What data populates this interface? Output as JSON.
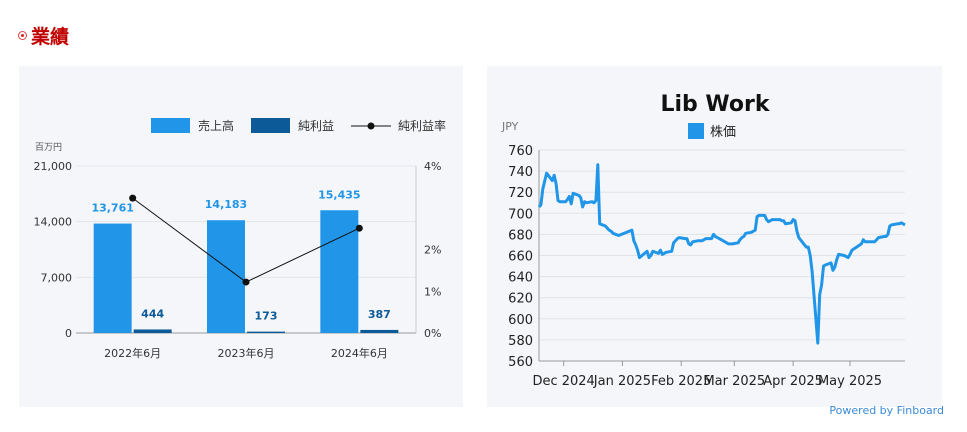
{
  "section": {
    "title": "業績"
  },
  "colors": {
    "sales": "#2196e8",
    "profit": "#0d5a99",
    "rate": "#111111",
    "price_line": "#2196e8",
    "title_red": "#c00000",
    "panel_bg": "#f4f6f9",
    "link": "#3a8ad6"
  },
  "chart_data": [
    {
      "type": "bar",
      "unit_label": "百万円",
      "categories": [
        "2022年6月",
        "2023年6月",
        "2024年6月"
      ],
      "series": [
        {
          "name": "売上高",
          "kind": "bar",
          "values": [
            13761,
            14183,
            15435
          ],
          "labels": [
            "13,761",
            "14,183",
            "15,435"
          ]
        },
        {
          "name": "純利益",
          "kind": "bar",
          "values": [
            444,
            173,
            387
          ],
          "labels": [
            "444",
            "173",
            "387"
          ]
        },
        {
          "name": "純利益率",
          "kind": "line",
          "axis": "right",
          "values": [
            3.23,
            1.22,
            2.51
          ]
        }
      ],
      "y_left": {
        "min": 0,
        "max": 21000,
        "ticks": [
          "0",
          "7,000",
          "14,000",
          "21,000"
        ]
      },
      "y_right": {
        "min": 0,
        "max": 4,
        "ticks": [
          "0%",
          "1%",
          "2%",
          "4%"
        ]
      },
      "legend_position": "top-right",
      "grid": true
    },
    {
      "type": "line",
      "title": "Lib Work",
      "ylabel": "JPY",
      "legend": "株価",
      "ylim": [
        560,
        760
      ],
      "y_ticks": [
        "560",
        "580",
        "600",
        "620",
        "640",
        "660",
        "680",
        "700",
        "720",
        "740",
        "760"
      ],
      "x_labels": [
        "Dec 2024",
        "Jan 2025",
        "Feb 2025",
        "Mar 2025",
        "Apr 2025",
        "May 2025"
      ],
      "x_range": [
        "2024-11-18",
        "2025-05-30"
      ],
      "grid": true,
      "series": [
        {
          "name": "株価",
          "x": [
            "2024-11-18",
            "2024-11-19",
            "2024-11-20",
            "2024-11-22",
            "2024-11-25",
            "2024-11-26",
            "2024-11-27",
            "2024-11-28",
            "2024-11-29",
            "2024-12-02",
            "2024-12-03",
            "2024-12-04",
            "2024-12-05",
            "2024-12-06",
            "2024-12-09",
            "2024-12-10",
            "2024-12-11",
            "2024-12-12",
            "2024-12-13",
            "2024-12-16",
            "2024-12-17",
            "2024-12-18",
            "2024-12-19",
            "2024-12-20",
            "2024-12-23",
            "2024-12-24",
            "2024-12-25",
            "2024-12-26",
            "2024-12-27",
            "2024-12-30",
            "2025-01-06",
            "2025-01-07",
            "2025-01-08",
            "2025-01-09",
            "2025-01-10",
            "2025-01-14",
            "2025-01-15",
            "2025-01-16",
            "2025-01-17",
            "2025-01-20",
            "2025-01-21",
            "2025-01-22",
            "2025-01-23",
            "2025-01-24",
            "2025-01-27",
            "2025-01-28",
            "2025-01-29",
            "2025-01-30",
            "2025-01-31",
            "2025-02-03",
            "2025-02-04",
            "2025-02-05",
            "2025-02-06",
            "2025-02-07",
            "2025-02-10",
            "2025-02-12",
            "2025-02-13",
            "2025-02-14",
            "2025-02-17",
            "2025-02-18",
            "2025-02-19",
            "2025-02-20",
            "2025-02-21",
            "2025-02-25",
            "2025-02-26",
            "2025-02-27",
            "2025-02-28",
            "2025-03-03",
            "2025-03-04",
            "2025-03-05",
            "2025-03-06",
            "2025-03-07",
            "2025-03-10",
            "2025-03-11",
            "2025-03-12",
            "2025-03-13",
            "2025-03-14",
            "2025-03-17",
            "2025-03-18",
            "2025-03-19",
            "2025-03-21",
            "2025-03-24",
            "2025-03-25",
            "2025-03-26",
            "2025-03-27",
            "2025-03-28",
            "2025-03-31",
            "2025-04-01",
            "2025-04-02",
            "2025-04-03",
            "2025-04-04",
            "2025-04-07",
            "2025-04-08",
            "2025-04-09",
            "2025-04-10",
            "2025-04-11",
            "2025-04-14",
            "2025-04-15",
            "2025-04-16",
            "2025-04-17",
            "2025-04-18",
            "2025-04-21",
            "2025-04-22",
            "2025-04-23",
            "2025-04-24",
            "2025-04-25",
            "2025-04-28",
            "2025-04-30",
            "2025-05-01",
            "2025-05-02",
            "2025-05-07",
            "2025-05-08",
            "2025-05-09",
            "2025-05-12",
            "2025-05-13",
            "2025-05-14",
            "2025-05-15",
            "2025-05-16",
            "2025-05-19",
            "2025-05-20",
            "2025-05-21",
            "2025-05-22",
            "2025-05-23",
            "2025-05-26",
            "2025-05-27",
            "2025-05-28",
            "2025-05-29",
            "2025-05-30"
          ],
          "y": [
            706,
            708,
            723,
            738,
            731,
            736,
            728,
            712,
            711,
            711,
            713,
            716,
            709,
            719,
            717,
            715,
            706,
            711,
            710,
            711,
            710,
            712,
            746,
            690,
            688,
            686,
            684,
            683,
            681,
            679,
            684,
            674,
            670,
            665,
            658,
            664,
            658,
            660,
            664,
            662,
            665,
            661,
            662,
            663,
            664,
            672,
            674,
            676,
            677,
            676,
            676,
            671,
            670,
            673,
            674,
            674,
            675,
            676,
            676,
            680,
            678,
            677,
            676,
            672,
            671,
            671,
            671,
            672,
            675,
            677,
            678,
            681,
            682,
            683,
            684,
            697,
            698,
            698,
            694,
            692,
            694,
            694,
            694,
            693,
            693,
            690,
            691,
            694,
            693,
            683,
            677,
            670,
            668,
            668,
            660,
            645,
            577,
            623,
            632,
            650,
            651,
            653,
            646,
            649,
            656,
            661,
            660,
            658,
            661,
            665,
            671,
            675,
            673,
            673,
            673,
            673,
            675,
            677,
            678,
            678,
            680,
            688,
            689,
            690,
            690,
            691,
            690,
            689
          ]
        }
      ]
    }
  ],
  "footer": {
    "powered_by": "Powered by Finboard"
  }
}
